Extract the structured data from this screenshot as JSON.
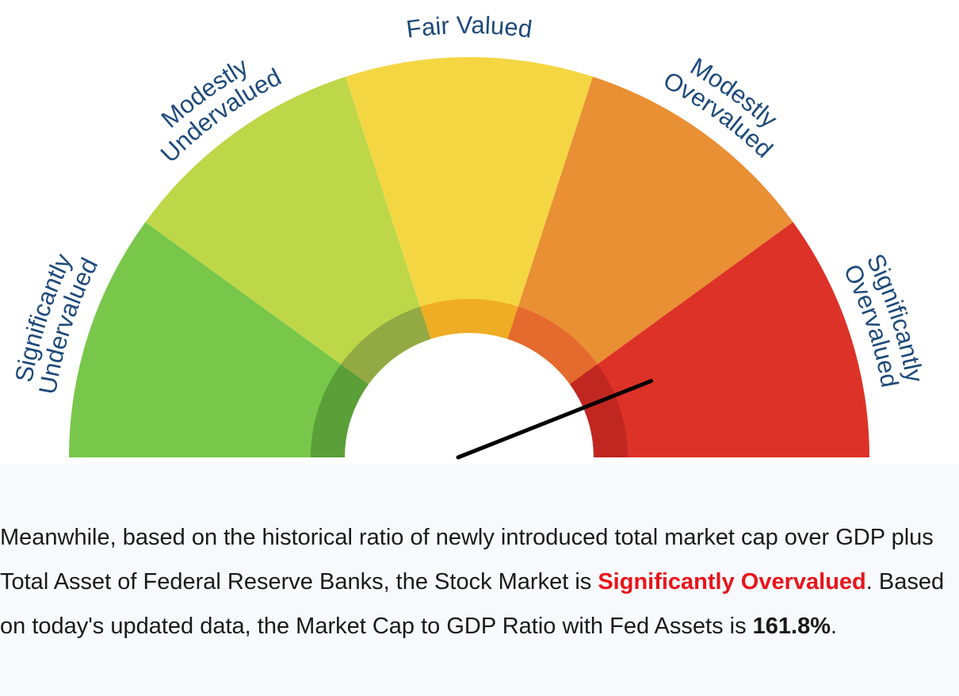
{
  "gauge": {
    "segments": [
      {
        "label_lines": [
          "Significantly",
          "Undervalued"
        ],
        "color": "#78c74a",
        "inner_color": "#5a9f38"
      },
      {
        "label_lines": [
          "Modestly",
          "Undervalued"
        ],
        "color": "#bdd748",
        "inner_color": "#93a944"
      },
      {
        "label_lines": [
          "Fair Valued"
        ],
        "color": "#f4d643",
        "inner_color": "#efad25"
      },
      {
        "label_lines": [
          "Modestly",
          "Overvalued"
        ],
        "color": "#e98f34",
        "inner_color": "#e56a2d"
      },
      {
        "label_lines": [
          "Significantly",
          "Overvalued"
        ],
        "color": "#dd3227",
        "inner_color": "#c02720"
      }
    ],
    "label_color": "#1d4a7a",
    "needle_color": "#000000",
    "needle_level": 0.88
  },
  "text": {
    "intro": "Meanwhile, based on the historical ratio of newly introduced total market cap over GDP plus Total Asset of Federal Reserve Banks, the Stock Market is ",
    "valuation": "Significantly Overvalued",
    "middle": ". Based on today's updated data, the Market Cap to GDP Ratio with Fed Assets is ",
    "ratio": "161.8%",
    "end": "."
  }
}
